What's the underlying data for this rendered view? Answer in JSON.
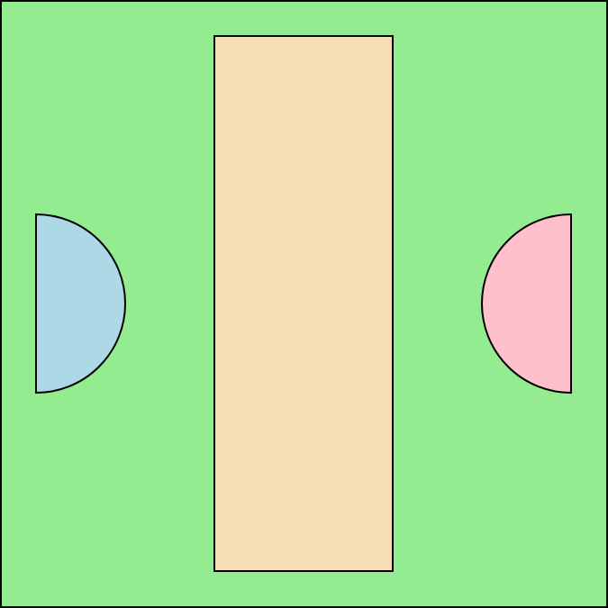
{
  "colors": {
    "field": "#94EC90",
    "pitch": "#F5DEB4",
    "left_semicircle": "#ADD8E6",
    "right_semicircle": "#FFC0CB",
    "outline": "#000000"
  }
}
